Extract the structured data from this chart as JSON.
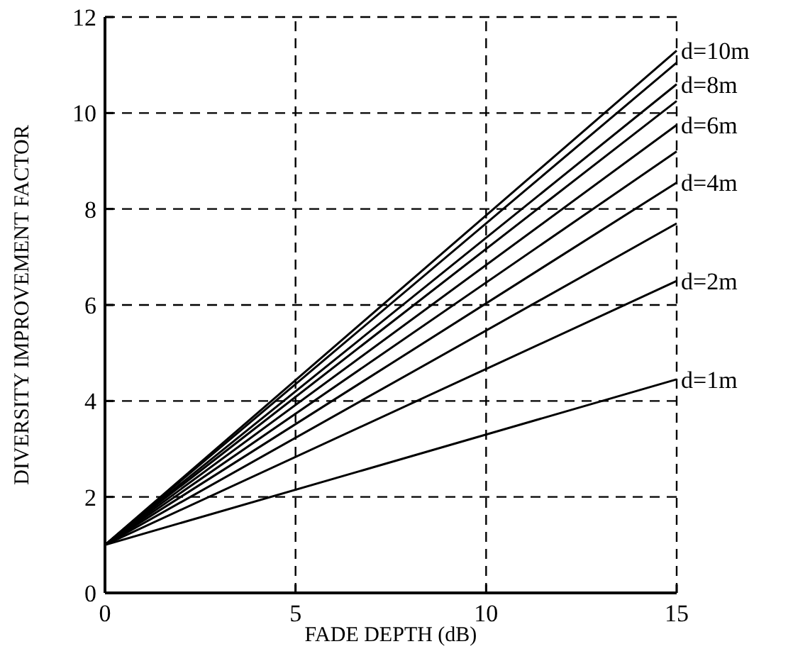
{
  "chart_data": {
    "type": "line",
    "xlabel": "FADE DEPTH (dB)",
    "ylabel": "DIVERSITY IMPROVEMENT FACTOR",
    "x": [
      0,
      15
    ],
    "xlim": [
      0,
      15
    ],
    "xticks": [
      0,
      5,
      10,
      15
    ],
    "ylim": [
      0,
      12
    ],
    "yticks": [
      0,
      2,
      4,
      6,
      8,
      10,
      12
    ],
    "grid": true,
    "line_style": "solid",
    "marker": "none",
    "series": [
      {
        "name": "d=1m",
        "color": "#000000",
        "values": [
          1,
          4.45
        ]
      },
      {
        "name": "d=2m",
        "color": "#000000",
        "values": [
          1,
          6.5
        ]
      },
      {
        "color": "#000000",
        "values": [
          1,
          7.7
        ]
      },
      {
        "name": "d=4m",
        "color": "#000000",
        "values": [
          1,
          8.55
        ]
      },
      {
        "color": "#000000",
        "values": [
          1,
          9.2
        ]
      },
      {
        "name": "d=6m",
        "color": "#000000",
        "values": [
          1,
          9.75
        ]
      },
      {
        "color": "#000000",
        "values": [
          1,
          10.25
        ]
      },
      {
        "name": "d=8m",
        "color": "#000000",
        "values": [
          1,
          10.6
        ]
      },
      {
        "color": "#000000",
        "values": [
          1,
          11.05
        ]
      },
      {
        "name": "d=10m",
        "color": "#000000",
        "values": [
          1,
          11.3
        ]
      }
    ]
  }
}
